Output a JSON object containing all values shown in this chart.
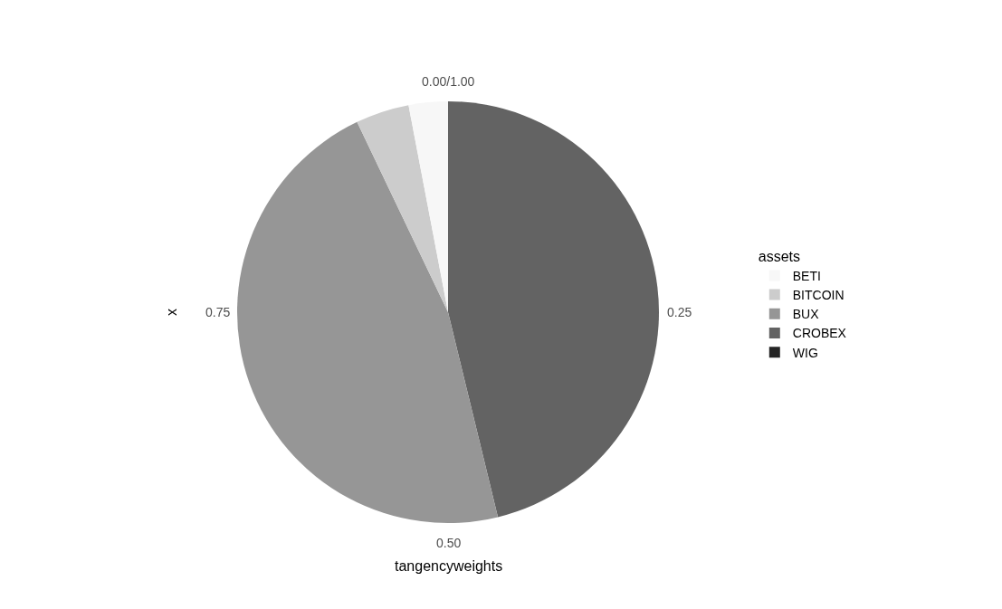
{
  "chart_data": {
    "type": "pie",
    "xlabel": "tangencyweights",
    "ylabel": "x",
    "legend_title": "assets",
    "legend": "right",
    "categories": [
      "BETI",
      "BITCOIN",
      "BUX",
      "CROBEX",
      "WIG"
    ],
    "values": [
      3.0,
      4.1,
      46.7,
      46.2,
      0
    ],
    "colors": [
      "#f7f7f7",
      "#cccccc",
      "#969696",
      "#636363",
      "#252525"
    ],
    "annotations": [
      "0.00/1.00",
      "0.25",
      "0.50",
      "0.75"
    ]
  }
}
